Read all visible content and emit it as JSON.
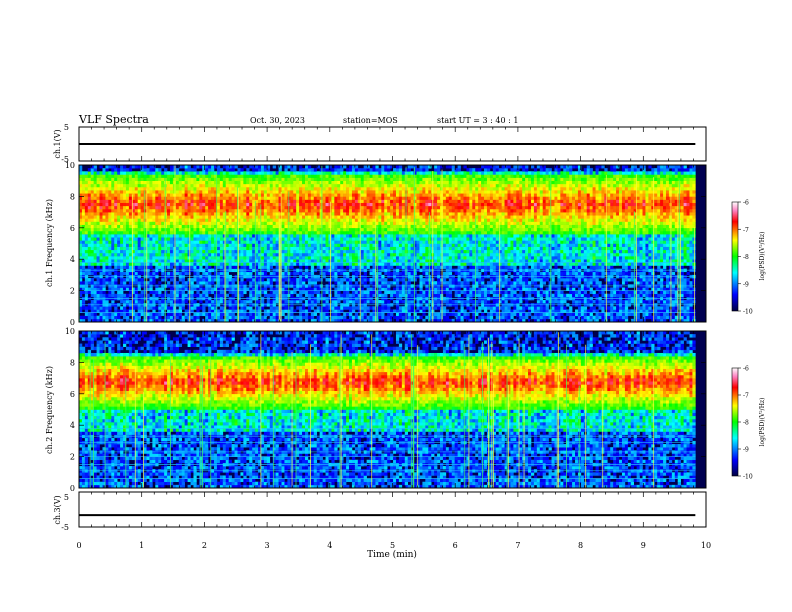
{
  "header": {
    "title": "VLF Spectra",
    "date": "Oct. 30, 2023",
    "station": "station=MOS",
    "start": "start  UT =  3 : 40 : 1"
  },
  "chart_data": [
    {
      "type": "line",
      "ylabel": "ch.1(V)",
      "ylim": [
        -5,
        5
      ],
      "yticks": [
        "5",
        "-5"
      ],
      "series": [
        {
          "x": [
            0,
            9.83
          ],
          "y": [
            0,
            0
          ]
        }
      ]
    },
    {
      "type": "heatmap",
      "ylabel": "ch.1  Frequency (kHz)",
      "ylim": [
        0,
        10
      ],
      "yticks": [
        "0",
        "2",
        "4",
        "6",
        "8",
        "10"
      ],
      "xlim": [
        0,
        9.83
      ],
      "activity_band_khz": [
        5.5,
        9.5
      ],
      "colorbar": {
        "label": "log(PSD)(V²/Hz)",
        "range": [
          -10,
          -6
        ],
        "ticks": [
          "-6",
          "-7",
          "-8",
          "-9",
          "-10"
        ]
      }
    },
    {
      "type": "heatmap",
      "ylabel": "ch.2  Frequency (kHz)",
      "ylim": [
        0,
        10
      ],
      "yticks": [
        "0",
        "2",
        "4",
        "6",
        "8",
        "10"
      ],
      "xlim": [
        0,
        9.83
      ],
      "activity_band_khz": [
        5.0,
        8.5
      ],
      "colorbar": {
        "label": "log(PSD)(V²/Hz)",
        "range": [
          -10,
          -6
        ],
        "ticks": [
          "-6",
          "-7",
          "-8",
          "-9",
          "-10"
        ]
      }
    },
    {
      "type": "line",
      "ylabel": "ch.3(V)",
      "ylim": [
        -5,
        5
      ],
      "yticks": [
        "5",
        "-5"
      ],
      "series": [
        {
          "x": [
            0,
            9.83
          ],
          "y": [
            -1.6,
            -1.6
          ]
        }
      ]
    }
  ],
  "xaxis": {
    "label": "Time  (min)",
    "range": [
      0,
      10
    ],
    "ticks": [
      "0",
      "1",
      "2",
      "3",
      "4",
      "5",
      "6",
      "7",
      "8",
      "9",
      "10"
    ]
  },
  "colors": {
    "low": "#000050",
    "mid": "#00ff00",
    "high": "#ff0000"
  }
}
